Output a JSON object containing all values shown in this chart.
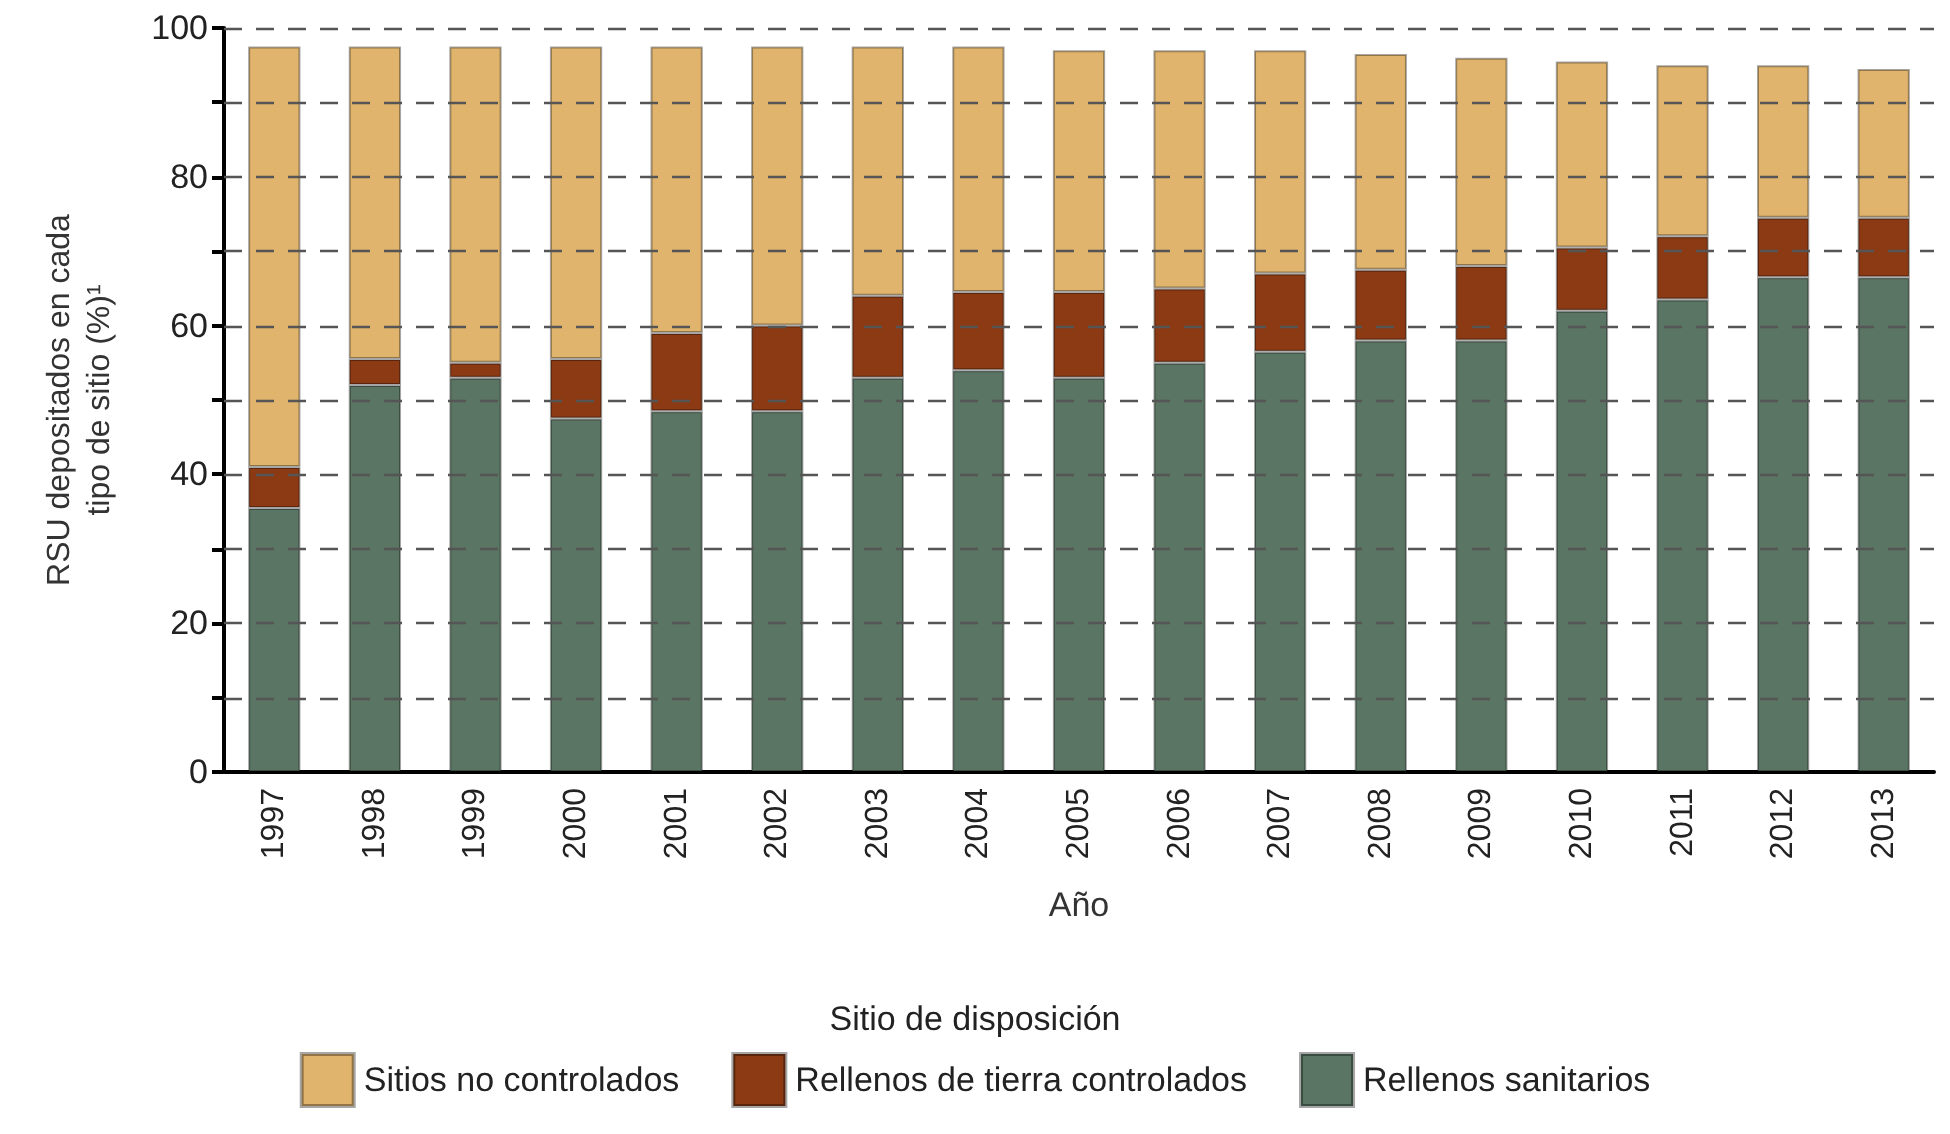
{
  "chart_data": {
    "type": "bar",
    "stacked": true,
    "xlabel": "Año",
    "ylabel": "RSU depositados en cada tipo de sitio (%)¹",
    "legend_title": "Sitio de disposición",
    "legend": "bottom",
    "grid": "y",
    "categories": [
      "1997",
      "1998",
      "1999",
      "2000",
      "2001",
      "2002",
      "2003",
      "2004",
      "2005",
      "2006",
      "2007",
      "2008",
      "2009",
      "2010",
      "2011",
      "2012",
      "2013"
    ],
    "ylim": [
      0,
      100
    ],
    "yticks": [
      0,
      {
        "value": 10,
        "label": null
      },
      20,
      {
        "value": 30,
        "label": null
      },
      40,
      {
        "value": 50,
        "label": null
      },
      60,
      {
        "value": 70,
        "label": null
      },
      80,
      {
        "value": 90,
        "label": null
      },
      100
    ],
    "series": [
      {
        "name": "Rellenos sanitarios",
        "color": "#5a7563",
        "values": [
          35.5,
          52,
          53,
          47.5,
          48.5,
          48.5,
          53,
          54,
          53,
          55,
          56.5,
          58,
          58,
          62,
          63.5,
          66.5,
          66.5
        ]
      },
      {
        "name": "Rellenos de tierra controlados",
        "color": "#8b3a14",
        "values": [
          5.5,
          3.5,
          2,
          8,
          10.5,
          11.5,
          11,
          10.5,
          11.5,
          10,
          10.5,
          9.5,
          10,
          8.5,
          8.5,
          8,
          8
        ]
      },
      {
        "name": "Sitios no controlados",
        "color": "#e0b46c",
        "values": [
          56.5,
          42,
          42.5,
          42,
          38.5,
          37.5,
          33.5,
          33,
          32.5,
          32,
          30,
          29,
          28,
          25,
          23,
          20.5,
          20
        ]
      }
    ]
  }
}
